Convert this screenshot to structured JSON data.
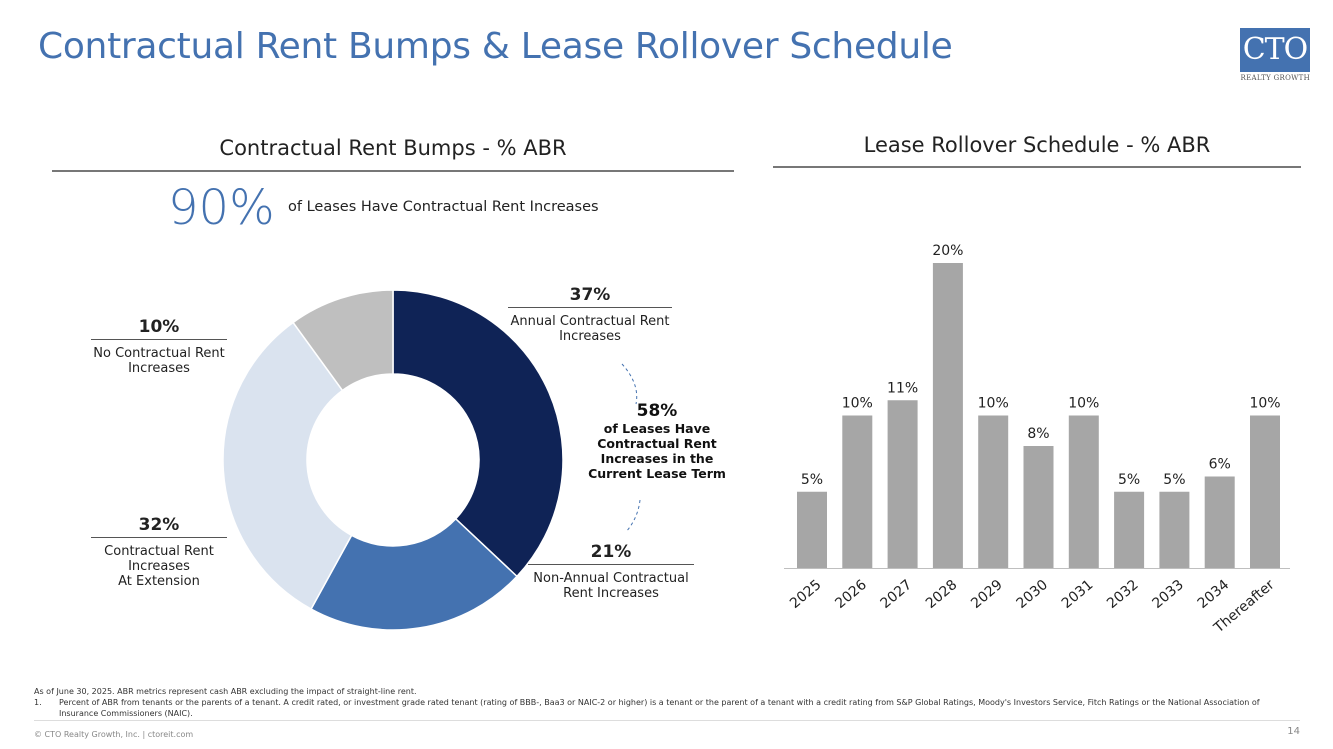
{
  "title": "Contractual Rent Bumps & Lease Rollover Schedule",
  "logo": {
    "main": "CTO",
    "sub": "REALTY GROWTH"
  },
  "left_section": {
    "heading": "Contractual Rent Bumps - % ABR",
    "big_pct": "90%",
    "big_text": "of Leases Have Contractual Rent Increases",
    "center_note": {
      "pct": "58%",
      "text": "of Leases Have Contractual Rent Increases in the Current Lease Term"
    },
    "labels": {
      "annual": {
        "pct": "37%",
        "text": "Annual Contractual Rent Increases"
      },
      "non_annual": {
        "pct": "21%",
        "text": "Non-Annual Contractual Rent Increases"
      },
      "extension": {
        "pct": "32%",
        "text_1": "Contractual Rent",
        "text_2": "Increases",
        "text_3": "At Extension"
      },
      "none": {
        "pct": "10%",
        "text": "No Contractual Rent Increases"
      }
    }
  },
  "right_section": {
    "heading": "Lease Rollover Schedule - % ABR"
  },
  "chart_data": [
    {
      "type": "pie",
      "title": "Contractual Rent Bumps - % ABR",
      "categories": [
        "Annual Contractual Rent Increases",
        "Non-Annual Contractual Rent Increases",
        "Contractual Rent Increases At Extension",
        "No Contractual Rent Increases"
      ],
      "values": [
        37,
        21,
        32,
        10
      ],
      "colors": [
        "#0f2356",
        "#4472b0",
        "#dae3ef",
        "#bfbfbf"
      ],
      "donut": true
    },
    {
      "type": "bar",
      "title": "Lease Rollover Schedule - % ABR",
      "categories": [
        "2025",
        "2026",
        "2027",
        "2028",
        "2029",
        "2030",
        "2031",
        "2032",
        "2033",
        "2034",
        "Thereafter"
      ],
      "values": [
        5,
        10,
        11,
        20,
        10,
        8,
        10,
        5,
        5,
        6,
        10
      ],
      "labels": [
        "5%",
        "10%",
        "11%",
        "20%",
        "10%",
        "8%",
        "10%",
        "5%",
        "5%",
        "6%",
        "10%"
      ],
      "color": "#a6a6a6",
      "ylim": [
        0,
        20
      ],
      "xlabel": "",
      "ylabel": ""
    }
  ],
  "footnotes": {
    "intro": "As of June 30, 2025. ABR metrics represent cash ABR excluding the impact of straight-line rent.",
    "note_num": "1.",
    "note_1": "Percent of ABR from tenants or the parents of a tenant. A credit rated, or investment grade rated tenant (rating of BBB-, Baa3 or NAIC-2 or higher) is a tenant or the parent of a tenant with a credit rating from S&P Global Ratings, Moody's Investors Service, Fitch Ratings or the National Association of Insurance Commissioners (NAIC)."
  },
  "footer": {
    "copyright": "© CTO Realty Growth, Inc. | ctoreit.com",
    "page": "14"
  }
}
